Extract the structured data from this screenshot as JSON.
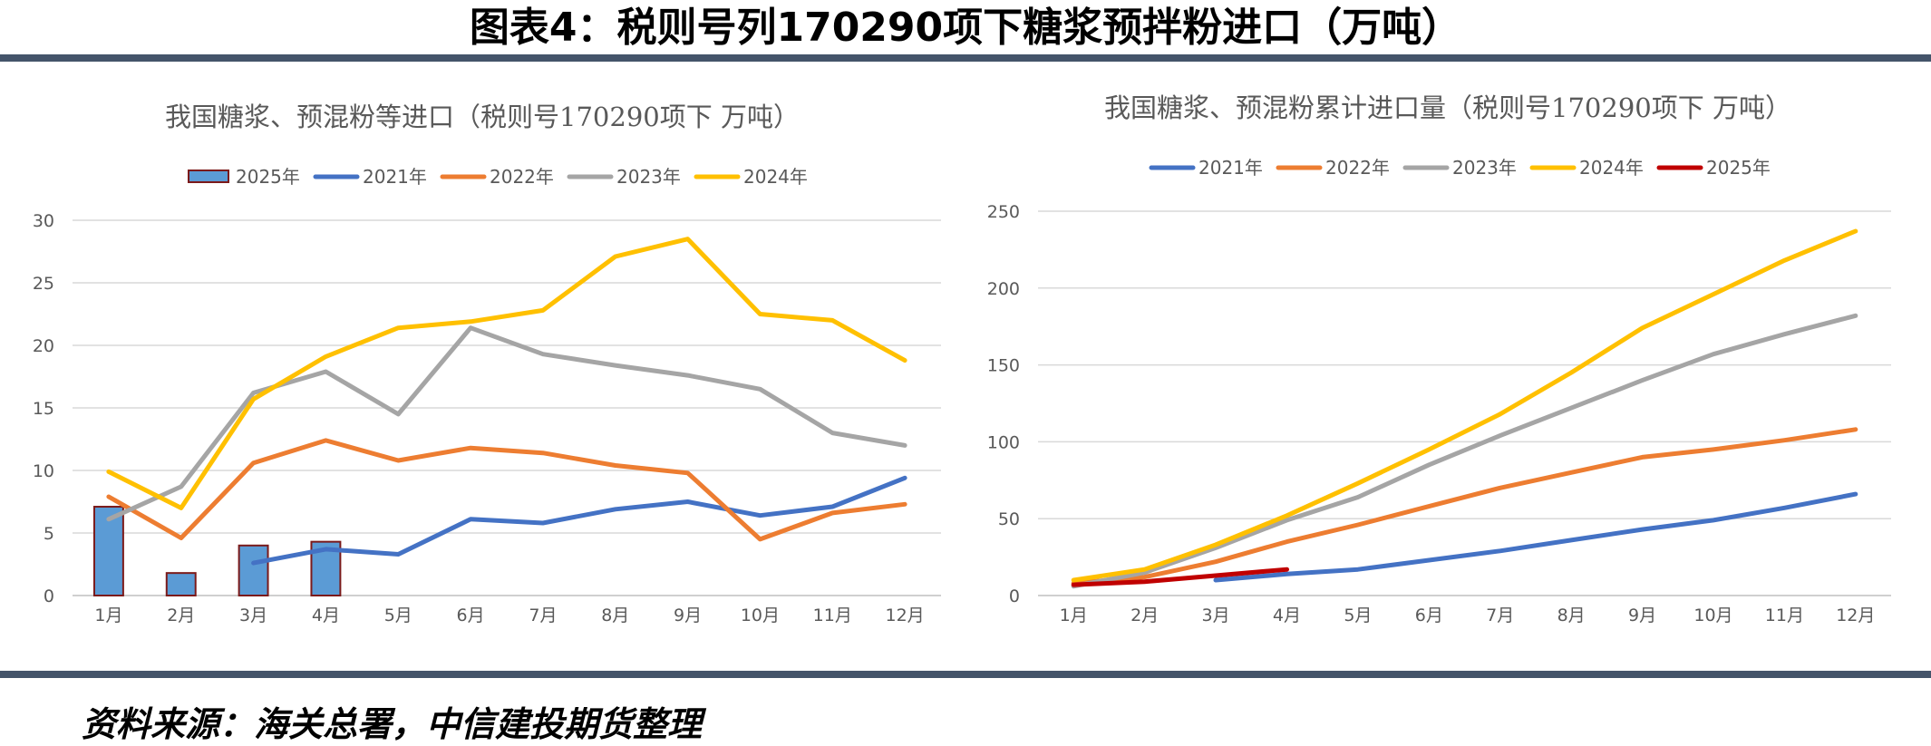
{
  "page": {
    "title": "图表4：税则号列170290项下糖浆预拌粉进口（万吨）",
    "source": "资料来源：海关总署，中信建投期货整理",
    "colors": {
      "bar": "#44546a"
    }
  },
  "chart_data": [
    {
      "type": "bar+line",
      "title": "我国糖浆、预混粉等进口（税则号170290项下  万吨）",
      "categories": [
        "1月",
        "2月",
        "3月",
        "4月",
        "5月",
        "6月",
        "7月",
        "8月",
        "9月",
        "10月",
        "11月",
        "12月"
      ],
      "ylim": [
        0,
        30
      ],
      "yticks": [
        0,
        5,
        10,
        15,
        20,
        25,
        30
      ],
      "grid": true,
      "legend": "top",
      "series": [
        {
          "name": "2025年",
          "kind": "bar",
          "color": "#5b9bd5",
          "border": "#7b1a1a",
          "values": [
            7.1,
            1.8,
            4.0,
            4.3,
            null,
            null,
            null,
            null,
            null,
            null,
            null,
            null
          ]
        },
        {
          "name": "2021年",
          "kind": "line",
          "color": "#4472c4",
          "values": [
            null,
            null,
            2.6,
            3.7,
            3.3,
            6.1,
            5.8,
            6.9,
            7.5,
            6.4,
            7.1,
            9.4
          ]
        },
        {
          "name": "2022年",
          "kind": "line",
          "color": "#ed7d31",
          "values": [
            7.9,
            4.6,
            10.6,
            12.4,
            10.8,
            11.8,
            11.4,
            10.4,
            9.8,
            4.5,
            6.6,
            7.3
          ]
        },
        {
          "name": "2023年",
          "kind": "line",
          "color": "#a5a5a5",
          "values": [
            6.1,
            8.7,
            16.2,
            17.9,
            14.5,
            21.4,
            19.3,
            18.4,
            17.6,
            16.5,
            13.0,
            12.0
          ]
        },
        {
          "name": "2024年",
          "kind": "line",
          "color": "#ffc000",
          "values": [
            9.9,
            7.0,
            15.7,
            19.1,
            21.4,
            21.9,
            22.8,
            27.1,
            28.5,
            22.5,
            22.0,
            18.8
          ]
        }
      ]
    },
    {
      "type": "line",
      "title": "我国糖浆、预混粉累计进口量（税则号170290项下  万吨）",
      "categories": [
        "1月",
        "2月",
        "3月",
        "4月",
        "5月",
        "6月",
        "7月",
        "8月",
        "9月",
        "10月",
        "11月",
        "12月"
      ],
      "ylim": [
        0,
        250
      ],
      "yticks": [
        0,
        50,
        100,
        150,
        200,
        250
      ],
      "grid": true,
      "legend": "top",
      "series": [
        {
          "name": "2021年",
          "kind": "line",
          "color": "#4472c4",
          "values": [
            null,
            null,
            10,
            14,
            17,
            23,
            29,
            36,
            43,
            49,
            57,
            66
          ]
        },
        {
          "name": "2022年",
          "kind": "line",
          "color": "#ed7d31",
          "values": [
            8,
            12,
            22,
            35,
            46,
            58,
            70,
            80,
            90,
            95,
            101,
            108
          ]
        },
        {
          "name": "2023年",
          "kind": "line",
          "color": "#a5a5a5",
          "values": [
            6,
            15,
            31,
            49,
            64,
            85,
            104,
            122,
            140,
            157,
            170,
            182
          ]
        },
        {
          "name": "2024年",
          "kind": "line",
          "color": "#ffc000",
          "values": [
            10,
            17,
            33,
            52,
            73,
            95,
            118,
            145,
            174,
            196,
            218,
            237
          ]
        },
        {
          "name": "2025年",
          "kind": "line",
          "color": "#c00000",
          "values": [
            7,
            9,
            13,
            17,
            null,
            null,
            null,
            null,
            null,
            null,
            null,
            null
          ]
        }
      ]
    }
  ]
}
